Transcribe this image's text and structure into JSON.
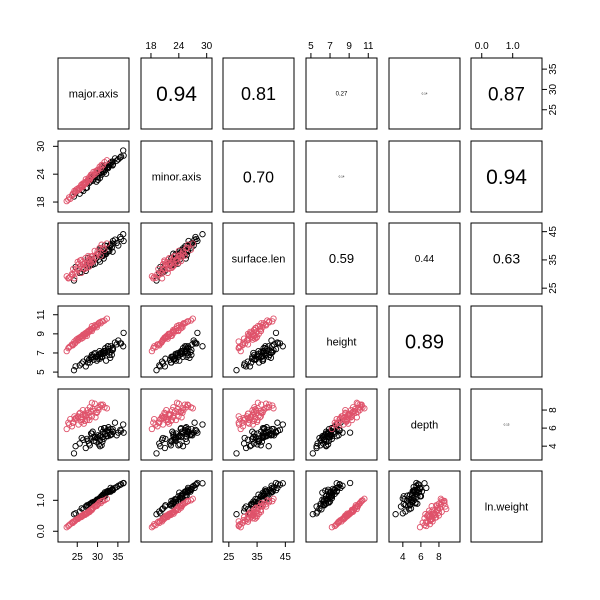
{
  "chart_data": {
    "type": "scatter",
    "title": "",
    "layout": "pairs",
    "variables": [
      {
        "name": "major.axis",
        "ticks": [
          "25",
          "30",
          "35"
        ],
        "range": [
          21,
          37
        ]
      },
      {
        "name": "minor.axis",
        "ticks": [
          "18",
          "24",
          "30"
        ],
        "range": [
          16.5,
          30.5
        ]
      },
      {
        "name": "surface.len",
        "ticks": [
          "25",
          "35",
          "45"
        ],
        "range": [
          24,
          47
        ]
      },
      {
        "name": "height",
        "ticks": [
          "5",
          "7",
          "9",
          "11"
        ],
        "range": [
          4.8,
          11.6
        ]
      },
      {
        "name": "depth",
        "ticks": [
          "4",
          "6",
          "8"
        ],
        "range": [
          2.8,
          10.0
        ]
      },
      {
        "name": "ln.weight",
        "ticks": [
          "0.0",
          "1.0"
        ],
        "range": [
          -0.25,
          1.85
        ]
      }
    ],
    "correlations": [
      {
        "row": 0,
        "col": 1,
        "label": "0.94",
        "size": 21
      },
      {
        "row": 0,
        "col": 2,
        "label": "0.81",
        "size": 18
      },
      {
        "row": 0,
        "col": 3,
        "label": "0.27",
        "size": 6
      },
      {
        "row": 0,
        "col": 4,
        "label": "0.14",
        "size": 3
      },
      {
        "row": 0,
        "col": 5,
        "label": "0.87",
        "size": 19
      },
      {
        "row": 1,
        "col": 2,
        "label": "0.70",
        "size": 16
      },
      {
        "row": 1,
        "col": 3,
        "label": "0.14",
        "size": 3
      },
      {
        "row": 1,
        "col": 4,
        "label": "",
        "size": 1
      },
      {
        "row": 1,
        "col": 5,
        "label": "0.94",
        "size": 21
      },
      {
        "row": 2,
        "col": 3,
        "label": "0.59",
        "size": 13
      },
      {
        "row": 2,
        "col": 4,
        "label": "0.44",
        "size": 10
      },
      {
        "row": 2,
        "col": 5,
        "label": "0.63",
        "size": 14
      },
      {
        "row": 3,
        "col": 4,
        "label": "0.89",
        "size": 20
      },
      {
        "row": 3,
        "col": 5,
        "label": "",
        "size": 1
      },
      {
        "row": 4,
        "col": 5,
        "label": "0.15",
        "size": 3
      }
    ],
    "series": [
      {
        "color": "#000000",
        "points": [
          [
            31.8,
            25.4,
            37.1,
            7.2,
            6.0,
            1.13
          ],
          [
            28.3,
            23.1,
            33.3,
            6.4,
            4.8,
            0.87
          ],
          [
            33.5,
            26.7,
            39.4,
            6.8,
            5.3,
            1.34
          ],
          [
            31.3,
            24.7,
            36.4,
            7.1,
            5.6,
            1.12
          ],
          [
            30.6,
            24.9,
            39.1,
            6.6,
            4.0,
            1.06
          ],
          [
            29.1,
            23.3,
            35.4,
            6.9,
            4.6,
            0.93
          ],
          [
            33.2,
            26.5,
            40.5,
            7.1,
            5.3,
            1.28
          ],
          [
            30.1,
            22.8,
            37.2,
            6.4,
            5.2,
            0.99
          ],
          [
            36.4,
            28.0,
            41.7,
            9.1,
            5.5,
            1.56
          ],
          [
            31.3,
            24.6,
            37.5,
            6.9,
            5.0,
            1.18
          ],
          [
            24.6,
            20.0,
            32.5,
            5.6,
            4.0,
            0.58
          ],
          [
            33.1,
            26.3,
            39.9,
            6.5,
            5.2,
            1.31
          ],
          [
            32.7,
            25.6,
            38.4,
            7.4,
            6.1,
            1.28
          ],
          [
            27.6,
            22.4,
            35.7,
            6.0,
            4.6,
            0.83
          ],
          [
            35.6,
            27.6,
            43.1,
            8.0,
            5.8,
            1.5
          ],
          [
            28.6,
            23.4,
            34.0,
            6.8,
            5.4,
            0.93
          ],
          [
            32.1,
            24.1,
            37.1,
            6.2,
            5.1,
            1.25
          ],
          [
            33.2,
            26.0,
            40.3,
            7.7,
            5.9,
            1.4
          ],
          [
            27.4,
            21.1,
            33.3,
            6.4,
            4.8,
            0.84
          ],
          [
            30.5,
            24.6,
            38.4,
            7.2,
            5.1,
            1.07
          ],
          [
            26.1,
            20.6,
            30.6,
            5.9,
            4.9,
            0.74
          ],
          [
            31.8,
            25.9,
            40.1,
            7.0,
            5.3,
            1.26
          ],
          [
            32.5,
            25.6,
            37.9,
            7.7,
            5.1,
            1.3
          ],
          [
            28.8,
            22.6,
            33.3,
            6.6,
            5.6,
            0.89
          ],
          [
            24.2,
            19.2,
            27.7,
            5.2,
            3.2,
            0.55
          ],
          [
            36.3,
            29.1,
            44.1,
            7.7,
            6.4,
            1.55
          ],
          [
            30.6,
            23.2,
            34.4,
            6.4,
            4.7,
            1.04
          ],
          [
            33.7,
            25.9,
            37.9,
            7.5,
            5.6,
            1.35
          ],
          [
            28.1,
            22.3,
            32.9,
            6.0,
            4.1,
            0.88
          ],
          [
            31.9,
            24.9,
            37.3,
            7.5,
            5.4,
            1.21
          ],
          [
            29.7,
            22.4,
            35.6,
            6.6,
            4.5,
            0.98
          ],
          [
            34.3,
            27.4,
            42.2,
            8.1,
            6.6,
            1.4
          ],
          [
            31.0,
            23.9,
            36.3,
            6.6,
            4.1,
            1.13
          ],
          [
            27.1,
            21.0,
            31.1,
            5.6,
            3.8,
            0.8
          ],
          [
            35.1,
            27.2,
            40.1,
            8.3,
            5.5,
            1.47
          ],
          [
            29.8,
            23.4,
            36.9,
            6.2,
            4.9,
            1.02
          ],
          [
            30.9,
            24.4,
            37.6,
            6.9,
            5.9,
            1.13
          ],
          [
            32.9,
            26.0,
            38.1,
            6.8,
            5.5,
            1.28
          ],
          [
            26.5,
            20.4,
            31.7,
            6.1,
            4.7,
            0.71
          ],
          [
            31.2,
            25.7,
            36.7,
            6.6,
            4.5,
            1.15
          ],
          [
            29.4,
            23.8,
            33.7,
            7.0,
            5.0,
            0.96
          ],
          [
            33.7,
            26.7,
            40.8,
            7.3,
            5.9,
            1.37
          ],
          [
            28.4,
            22.8,
            35.2,
            6.6,
            5.4,
            0.9
          ],
          [
            34.7,
            26.9,
            41.0,
            7.9,
            5.2,
            1.43
          ],
          [
            30.3,
            24.2,
            35.1,
            6.8,
            4.2,
            1.04
          ],
          [
            32.3,
            25.4,
            39.9,
            7.1,
            5.7,
            1.25
          ],
          [
            25.6,
            19.8,
            30.4,
            5.7,
            4.3,
            0.64
          ],
          [
            30.0,
            23.3,
            37.0,
            6.7,
            5.0,
            1.03
          ],
          [
            31.6,
            24.5,
            37.5,
            7.2,
            6.0,
            1.14
          ],
          [
            27.9,
            22.1,
            33.9,
            6.3,
            4.3,
            0.85
          ],
          [
            33.8,
            26.1,
            41.7,
            7.4,
            5.6,
            1.33
          ],
          [
            31.5,
            25.5,
            35.5,
            7.2,
            4.8,
            1.18
          ],
          [
            29.0,
            22.9,
            34.5,
            6.3,
            5.0,
            0.95
          ],
          [
            35.8,
            27.8,
            42.4,
            8.0,
            5.7,
            1.52
          ],
          [
            30.8,
            24.2,
            38.3,
            7.0,
            5.2,
            1.09
          ],
          [
            32.6,
            25.3,
            39.0,
            7.7,
            5.8,
            1.28
          ]
        ]
      },
      {
        "color": "#DF536B",
        "points": [
          [
            26.4,
            22.0,
            33.5,
            8.9,
            7.5,
            0.52
          ],
          [
            24.8,
            20.7,
            31.9,
            8.4,
            7.1,
            0.38
          ],
          [
            28.6,
            23.9,
            36.3,
            9.3,
            7.3,
            0.69
          ],
          [
            22.8,
            18.5,
            28.5,
            7.5,
            6.6,
            0.17
          ],
          [
            25.7,
            20.9,
            34.8,
            8.6,
            7.7,
            0.45
          ],
          [
            29.8,
            24.8,
            36.9,
            9.7,
            7.7,
            0.84
          ],
          [
            27.4,
            22.5,
            32.2,
            8.8,
            6.9,
            0.57
          ],
          [
            23.7,
            19.4,
            30.0,
            7.9,
            6.2,
            0.28
          ],
          [
            31.3,
            25.9,
            39.3,
            10.3,
            8.6,
            0.98
          ],
          [
            26.0,
            21.7,
            35.0,
            8.7,
            6.7,
            0.5
          ],
          [
            28.1,
            22.8,
            34.0,
            9.4,
            8.3,
            0.63
          ],
          [
            24.3,
            20.4,
            28.5,
            8.2,
            7.3,
            0.32
          ],
          [
            30.2,
            25.0,
            37.3,
            10.1,
            8.0,
            0.89
          ],
          [
            27.1,
            22.9,
            32.9,
            9.1,
            7.3,
            0.57
          ],
          [
            25.3,
            20.6,
            33.5,
            8.4,
            6.4,
            0.42
          ],
          [
            29.3,
            24.0,
            38.2,
            9.9,
            8.7,
            0.8
          ],
          [
            23.3,
            18.7,
            29.0,
            7.7,
            7.0,
            0.23
          ],
          [
            26.8,
            21.8,
            31.8,
            9.0,
            7.6,
            0.54
          ],
          [
            32.3,
            27.0,
            40.8,
            10.6,
            8.2,
            1.05
          ],
          [
            28.0,
            23.4,
            35.1,
            9.3,
            6.9,
            0.66
          ],
          [
            24.6,
            20.3,
            30.2,
            8.1,
            7.1,
            0.36
          ],
          [
            27.7,
            23.0,
            36.4,
            9.3,
            7.7,
            0.63
          ],
          [
            30.8,
            25.3,
            36.5,
            10.1,
            8.6,
            0.91
          ],
          [
            25.9,
            21.2,
            33.0,
            8.7,
            7.2,
            0.47
          ],
          [
            29.0,
            24.5,
            34.6,
            9.6,
            7.9,
            0.76
          ],
          [
            22.4,
            18.2,
            29.2,
            7.2,
            5.9,
            0.13
          ],
          [
            26.4,
            21.3,
            33.4,
            8.6,
            8.0,
            0.51
          ],
          [
            31.7,
            26.6,
            38.6,
            10.4,
            8.3,
            1.0
          ],
          [
            27.9,
            22.7,
            32.6,
            9.2,
            7.2,
            0.62
          ],
          [
            24.0,
            19.6,
            31.8,
            7.9,
            6.6,
            0.31
          ],
          [
            28.6,
            23.6,
            35.3,
            9.8,
            8.8,
            0.72
          ],
          [
            26.0,
            21.6,
            30.4,
            8.5,
            6.9,
            0.46
          ],
          [
            29.8,
            24.4,
            37.0,
            9.9,
            7.8,
            0.82
          ],
          [
            25.1,
            20.9,
            34.3,
            8.5,
            7.2,
            0.41
          ],
          [
            27.3,
            22.2,
            33.4,
            9.0,
            7.5,
            0.58
          ],
          [
            23.0,
            19.0,
            28.6,
            7.6,
            6.4,
            0.2
          ],
          [
            30.5,
            25.6,
            39.2,
            10.2,
            8.3,
            0.94
          ],
          [
            26.6,
            21.9,
            32.2,
            8.9,
            6.5,
            0.55
          ],
          [
            28.3,
            23.2,
            36.2,
            9.5,
            7.9,
            0.68
          ],
          [
            24.4,
            20.0,
            30.8,
            8.0,
            7.0,
            0.33
          ],
          [
            27.5,
            22.6,
            34.7,
            9.2,
            8.0,
            0.6
          ],
          [
            29.5,
            24.6,
            36.0,
            9.8,
            7.2,
            0.81
          ],
          [
            25.5,
            21.1,
            31.9,
            8.6,
            7.6,
            0.44
          ],
          [
            31.0,
            26.0,
            40.4,
            10.3,
            8.5,
            0.97
          ],
          [
            26.9,
            22.3,
            33.8,
            8.8,
            6.8,
            0.53
          ],
          [
            28.8,
            23.7,
            34.4,
            9.6,
            8.1,
            0.74
          ],
          [
            23.9,
            19.8,
            29.8,
            7.8,
            6.6,
            0.27
          ],
          [
            27.0,
            21.9,
            35.6,
            9.0,
            7.4,
            0.56
          ],
          [
            30.0,
            24.9,
            38.0,
            10.0,
            8.2,
            0.87
          ],
          [
            25.2,
            20.5,
            31.4,
            8.3,
            7.3,
            0.4
          ],
          [
            28.4,
            23.9,
            33.9,
            9.4,
            7.8,
            0.7
          ],
          [
            26.3,
            21.4,
            34.2,
            8.8,
            7.0,
            0.49
          ]
        ]
      }
    ]
  }
}
